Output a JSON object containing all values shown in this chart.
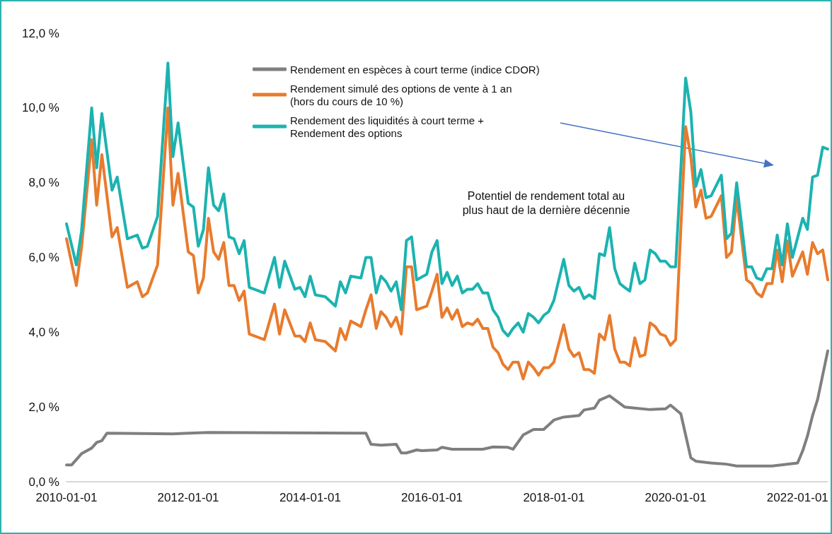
{
  "chart_data": {
    "type": "line",
    "xlim": [
      "2010-01",
      "2022-07"
    ],
    "xticks": [
      "2010-01-01",
      "2012-01-01",
      "2014-01-01",
      "2016-01-01",
      "2018-01-01",
      "2020-01-01",
      "2022-01-01"
    ],
    "ylim": [
      0,
      12
    ],
    "yticks": [
      {
        "value": 0,
        "label": "0,0 %"
      },
      {
        "value": 2,
        "label": "2,0 %"
      },
      {
        "value": 4,
        "label": "4,0 %"
      },
      {
        "value": 6,
        "label": "6,0 %"
      },
      {
        "value": 8,
        "label": "8,0 %"
      },
      {
        "value": 10,
        "label": "10,0 %"
      },
      {
        "value": 12,
        "label": "12,0 %"
      }
    ],
    "grid": false,
    "legend": "top",
    "marker": "none",
    "line_style": "solid",
    "annotations": [
      "Potentiel de rendement total au\nplus haut de la dernière décennie"
    ],
    "series": [
      {
        "name": "Rendement en espèces à court terme (indice CDOR)",
        "color": "#7f7f7f",
        "x": [
          "2010-01",
          "2010-02",
          "2010-04",
          "2010-06",
          "2010-07",
          "2010-08",
          "2010-09",
          "2011-10",
          "2012-05",
          "2014-12",
          "2015-01",
          "2015-03",
          "2015-06",
          "2015-07",
          "2015-08",
          "2015-10",
          "2015-11",
          "2016-02",
          "2016-03",
          "2016-05",
          "2016-11",
          "2017-01",
          "2017-04",
          "2017-05",
          "2017-07",
          "2017-09",
          "2017-11",
          "2018-01",
          "2018-03",
          "2018-06",
          "2018-07",
          "2018-09",
          "2018-10",
          "2018-12",
          "2019-03",
          "2019-05",
          "2019-08",
          "2019-11",
          "2019-12",
          "2020-02",
          "2020-04",
          "2020-05",
          "2020-08",
          "2020-11",
          "2021-01",
          "2021-08",
          "2022-01",
          "2022-02",
          "2022-03",
          "2022-04",
          "2022-05",
          "2022-07"
        ],
        "values": [
          0.45,
          0.45,
          0.75,
          0.9,
          1.05,
          1.1,
          1.3,
          1.28,
          1.32,
          1.3,
          1.0,
          0.98,
          1.0,
          0.77,
          0.77,
          0.85,
          0.83,
          0.85,
          0.92,
          0.87,
          0.87,
          0.93,
          0.92,
          0.87,
          1.25,
          1.4,
          1.4,
          1.65,
          1.73,
          1.77,
          1.92,
          1.97,
          2.18,
          2.3,
          2.0,
          1.97,
          1.93,
          1.95,
          2.05,
          1.82,
          0.64,
          0.55,
          0.5,
          0.47,
          0.42,
          0.42,
          0.5,
          0.83,
          1.22,
          1.77,
          2.2,
          3.5
        ]
      },
      {
        "name": "Rendement simulé des options de vente à 1 an\n(hors du cours de 10 %)",
        "color": "#e87b2d",
        "x": [
          "2010-01",
          "2010-03",
          "2010-04",
          "2010-06",
          "2010-07",
          "2010-08",
          "2010-10",
          "2010-11",
          "2011-01",
          "2011-03",
          "2011-04",
          "2011-05",
          "2011-07",
          "2011-09",
          "2011-10",
          "2011-11",
          "2012-01",
          "2012-02",
          "2012-03",
          "2012-04",
          "2012-05",
          "2012-06",
          "2012-07",
          "2012-08",
          "2012-09",
          "2012-10",
          "2012-11",
          "2012-12",
          "2013-01",
          "2013-04",
          "2013-06",
          "2013-07",
          "2013-08",
          "2013-10",
          "2013-11",
          "2013-12",
          "2014-01",
          "2014-02",
          "2014-04",
          "2014-06",
          "2014-07",
          "2014-08",
          "2014-09",
          "2014-11",
          "2014-12",
          "2015-01",
          "2015-02",
          "2015-03",
          "2015-04",
          "2015-05",
          "2015-06",
          "2015-07",
          "2015-08",
          "2015-09",
          "2015-10",
          "2015-12",
          "2016-01",
          "2016-02",
          "2016-03",
          "2016-04",
          "2016-05",
          "2016-06",
          "2016-07",
          "2016-08",
          "2016-09",
          "2016-10",
          "2016-11",
          "2016-12",
          "2017-01",
          "2017-02",
          "2017-03",
          "2017-04",
          "2017-05",
          "2017-06",
          "2017-07",
          "2017-08",
          "2017-09",
          "2017-10",
          "2017-11",
          "2017-12",
          "2018-01",
          "2018-03",
          "2018-04",
          "2018-05",
          "2018-06",
          "2018-07",
          "2018-08",
          "2018-09",
          "2018-10",
          "2018-11",
          "2018-12",
          "2019-01",
          "2019-02",
          "2019-03",
          "2019-04",
          "2019-05",
          "2019-06",
          "2019-07",
          "2019-08",
          "2019-09",
          "2019-10",
          "2019-11",
          "2019-12",
          "2020-01",
          "2020-03",
          "2020-04",
          "2020-05",
          "2020-06",
          "2020-07",
          "2020-08",
          "2020-10",
          "2020-11",
          "2020-12",
          "2021-01",
          "2021-03",
          "2021-04",
          "2021-05",
          "2021-06",
          "2021-07",
          "2021-08",
          "2021-09",
          "2021-10",
          "2021-11",
          "2021-12",
          "2022-02",
          "2022-03",
          "2022-04",
          "2022-05",
          "2022-06",
          "2022-07"
        ],
        "values": [
          6.5,
          5.25,
          6.25,
          9.15,
          7.4,
          8.75,
          6.55,
          6.8,
          5.2,
          5.35,
          4.95,
          5.05,
          5.8,
          10.0,
          7.4,
          8.25,
          6.15,
          6.05,
          5.05,
          5.45,
          7.05,
          6.15,
          5.95,
          6.4,
          5.25,
          5.25,
          4.85,
          5.1,
          3.95,
          3.8,
          4.75,
          3.95,
          4.6,
          3.9,
          3.9,
          3.75,
          4.25,
          3.8,
          3.75,
          3.5,
          4.1,
          3.8,
          4.3,
          4.15,
          4.6,
          5.0,
          4.1,
          4.55,
          4.4,
          4.15,
          4.4,
          3.95,
          5.75,
          5.75,
          4.6,
          4.7,
          5.1,
          5.55,
          4.4,
          4.65,
          4.35,
          4.6,
          4.15,
          4.25,
          4.2,
          4.35,
          4.1,
          4.1,
          3.6,
          3.45,
          3.15,
          3.0,
          3.2,
          3.2,
          2.75,
          3.2,
          3.05,
          2.85,
          3.05,
          3.05,
          3.2,
          4.2,
          3.55,
          3.35,
          3.45,
          3.0,
          3.0,
          2.9,
          3.95,
          3.8,
          4.45,
          3.55,
          3.2,
          3.2,
          3.1,
          3.85,
          3.35,
          3.4,
          4.25,
          4.15,
          3.95,
          3.9,
          3.65,
          3.8,
          9.5,
          8.7,
          7.35,
          7.8,
          7.05,
          7.1,
          7.65,
          6.0,
          6.15,
          7.6,
          5.4,
          5.3,
          5.05,
          4.95,
          5.3,
          5.3,
          6.2,
          5.35,
          6.45,
          5.5,
          6.15,
          5.55,
          6.4,
          6.1,
          6.2,
          5.4
        ]
      },
      {
        "name": "Rendement des liquidités à court terme +\nRendement des options",
        "color": "#1bb3b0",
        "x": [
          "2010-01",
          "2010-03",
          "2010-04",
          "2010-06",
          "2010-07",
          "2010-08",
          "2010-10",
          "2010-11",
          "2011-01",
          "2011-03",
          "2011-04",
          "2011-05",
          "2011-07",
          "2011-09",
          "2011-10",
          "2011-11",
          "2012-01",
          "2012-02",
          "2012-03",
          "2012-04",
          "2012-05",
          "2012-06",
          "2012-07",
          "2012-08",
          "2012-09",
          "2012-10",
          "2012-11",
          "2012-12",
          "2013-01",
          "2013-04",
          "2013-06",
          "2013-07",
          "2013-08",
          "2013-10",
          "2013-11",
          "2013-12",
          "2014-01",
          "2014-02",
          "2014-04",
          "2014-06",
          "2014-07",
          "2014-08",
          "2014-09",
          "2014-11",
          "2014-12",
          "2015-01",
          "2015-02",
          "2015-03",
          "2015-04",
          "2015-05",
          "2015-06",
          "2015-07",
          "2015-08",
          "2015-09",
          "2015-10",
          "2015-12",
          "2016-01",
          "2016-02",
          "2016-03",
          "2016-04",
          "2016-05",
          "2016-06",
          "2016-07",
          "2016-08",
          "2016-09",
          "2016-10",
          "2016-11",
          "2016-12",
          "2017-01",
          "2017-02",
          "2017-03",
          "2017-04",
          "2017-05",
          "2017-06",
          "2017-07",
          "2017-08",
          "2017-09",
          "2017-10",
          "2017-11",
          "2017-12",
          "2018-01",
          "2018-03",
          "2018-04",
          "2018-05",
          "2018-06",
          "2018-07",
          "2018-08",
          "2018-09",
          "2018-10",
          "2018-11",
          "2018-12",
          "2019-01",
          "2019-02",
          "2019-03",
          "2019-04",
          "2019-05",
          "2019-06",
          "2019-07",
          "2019-08",
          "2019-09",
          "2019-10",
          "2019-11",
          "2019-12",
          "2020-01",
          "2020-03",
          "2020-04",
          "2020-05",
          "2020-06",
          "2020-07",
          "2020-08",
          "2020-10",
          "2020-11",
          "2020-12",
          "2021-01",
          "2021-03",
          "2021-04",
          "2021-05",
          "2021-06",
          "2021-07",
          "2021-08",
          "2021-09",
          "2021-10",
          "2021-11",
          "2021-12",
          "2022-02",
          "2022-03",
          "2022-04",
          "2022-05",
          "2022-06",
          "2022-07"
        ],
        "values": [
          6.9,
          5.8,
          6.7,
          10.0,
          8.4,
          9.85,
          7.8,
          8.15,
          6.5,
          6.6,
          6.25,
          6.3,
          7.1,
          11.2,
          8.7,
          9.6,
          7.45,
          7.35,
          6.3,
          6.75,
          8.4,
          7.4,
          7.25,
          7.7,
          6.55,
          6.5,
          6.1,
          6.45,
          5.2,
          5.05,
          6.0,
          5.2,
          5.9,
          5.15,
          5.2,
          4.95,
          5.5,
          5.0,
          4.95,
          4.7,
          5.35,
          5.05,
          5.5,
          5.45,
          6.0,
          6.0,
          5.05,
          5.5,
          5.35,
          5.1,
          5.35,
          4.6,
          6.45,
          6.55,
          5.4,
          5.55,
          6.15,
          6.45,
          5.3,
          5.6,
          5.25,
          5.5,
          5.05,
          5.15,
          5.15,
          5.3,
          5.05,
          5.05,
          4.6,
          4.4,
          4.05,
          3.9,
          4.1,
          4.25,
          4.0,
          4.5,
          4.4,
          4.25,
          4.45,
          4.55,
          4.85,
          5.95,
          5.25,
          5.1,
          5.2,
          4.9,
          5.0,
          4.9,
          6.1,
          6.05,
          6.8,
          5.7,
          5.3,
          5.2,
          5.1,
          5.85,
          5.3,
          5.4,
          6.2,
          6.1,
          5.9,
          5.9,
          5.75,
          5.75,
          10.8,
          9.9,
          7.9,
          8.35,
          7.6,
          7.65,
          8.2,
          6.5,
          6.65,
          8.0,
          5.75,
          5.75,
          5.45,
          5.4,
          5.7,
          5.7,
          6.6,
          5.8,
          6.9,
          6.0,
          7.05,
          6.75,
          8.15,
          8.2,
          8.95,
          8.9
        ]
      }
    ]
  }
}
